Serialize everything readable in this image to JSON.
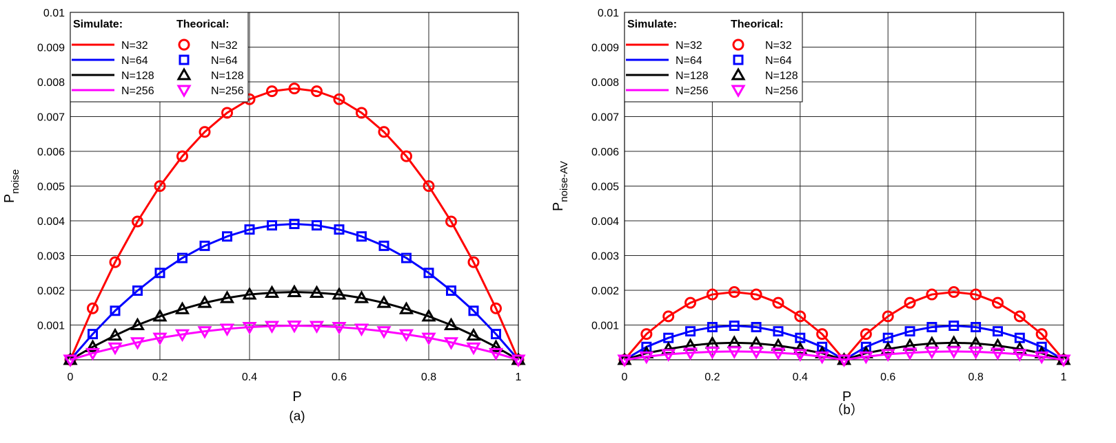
{
  "colors": {
    "N32": "#ff0000",
    "N64": "#0000ff",
    "N128": "#000000",
    "N256": "#ff00ff"
  },
  "chart_data": [
    {
      "type": "line",
      "panel": "a",
      "caption": "(a)",
      "xlabel": "P",
      "ylabel_main": "P",
      "ylabel_sub": "noise",
      "xlim": [
        0,
        1
      ],
      "ylim": [
        0,
        0.01
      ],
      "xticks": [
        "0",
        "0.2",
        "0.4",
        "0.6",
        "0.8",
        "1"
      ],
      "yticks": [
        "0.001",
        "0.002",
        "0.003",
        "0.004",
        "0.005",
        "0.006",
        "0.007",
        "0.008",
        "0.009",
        "0.01"
      ],
      "grid": true,
      "legend": {
        "position": "top-left",
        "simulate_title": "Simulate:",
        "theorical_title": "Theorical:"
      },
      "x": [
        0,
        0.05,
        0.1,
        0.15,
        0.2,
        0.25,
        0.3,
        0.35,
        0.4,
        0.45,
        0.5,
        0.55,
        0.6,
        0.65,
        0.7,
        0.75,
        0.8,
        0.85,
        0.9,
        0.95,
        1
      ],
      "series": [
        {
          "name": "N=32",
          "key": "N32",
          "marker": "circle",
          "values": [
            0,
            0.00148,
            0.00281,
            0.00398,
            0.005,
            0.00586,
            0.00656,
            0.00711,
            0.0075,
            0.00773,
            0.00781,
            0.00773,
            0.0075,
            0.00711,
            0.00656,
            0.00586,
            0.005,
            0.00398,
            0.00281,
            0.00148,
            0
          ]
        },
        {
          "name": "N=64",
          "key": "N64",
          "marker": "square",
          "values": [
            0,
            0.00074,
            0.00141,
            0.00199,
            0.0025,
            0.00293,
            0.00328,
            0.00355,
            0.00375,
            0.00387,
            0.00391,
            0.00387,
            0.00375,
            0.00355,
            0.00328,
            0.00293,
            0.0025,
            0.00199,
            0.00141,
            0.00074,
            0
          ]
        },
        {
          "name": "N=128",
          "key": "N128",
          "marker": "triangle-up",
          "values": [
            0,
            0.00037,
            0.0007,
            0.001,
            0.00125,
            0.00146,
            0.00164,
            0.00178,
            0.00188,
            0.00193,
            0.00195,
            0.00193,
            0.00188,
            0.00178,
            0.00164,
            0.00146,
            0.00125,
            0.001,
            0.0007,
            0.00037,
            0
          ]
        },
        {
          "name": "N=256",
          "key": "N256",
          "marker": "triangle-down",
          "values": [
            0,
            0.00019,
            0.00035,
            0.0005,
            0.00063,
            0.00073,
            0.00082,
            0.00089,
            0.00094,
            0.00097,
            0.00098,
            0.00097,
            0.00094,
            0.00089,
            0.00082,
            0.00073,
            0.00063,
            0.0005,
            0.00035,
            0.00019,
            0
          ]
        }
      ]
    },
    {
      "type": "line",
      "panel": "b",
      "caption": "（b）",
      "xlabel": "P",
      "ylabel_main": "P",
      "ylabel_sub": "noise-AV",
      "xlim": [
        0,
        1
      ],
      "ylim": [
        0,
        0.01
      ],
      "xticks": [
        "0",
        "0.2",
        "0.4",
        "0.6",
        "0.8",
        "1"
      ],
      "yticks": [
        "0.001",
        "0.002",
        "0.003",
        "0.004",
        "0.005",
        "0.006",
        "0.007",
        "0.008",
        "0.009",
        "0.01"
      ],
      "grid": true,
      "legend": {
        "position": "top-left",
        "simulate_title": "Simulate:",
        "theorical_title": "Theorical:"
      },
      "x": [
        0,
        0.05,
        0.1,
        0.15,
        0.2,
        0.25,
        0.3,
        0.35,
        0.4,
        0.45,
        0.5,
        0.55,
        0.6,
        0.65,
        0.7,
        0.75,
        0.8,
        0.85,
        0.9,
        0.95,
        1
      ],
      "series": [
        {
          "name": "N=32",
          "key": "N32",
          "marker": "circle",
          "values": [
            0,
            0.00074,
            0.00125,
            0.00164,
            0.00188,
            0.00195,
            0.00188,
            0.00164,
            0.00125,
            0.00074,
            0,
            0.00074,
            0.00125,
            0.00164,
            0.00188,
            0.00195,
            0.00188,
            0.00164,
            0.00125,
            0.00074,
            0
          ]
        },
        {
          "name": "N=64",
          "key": "N64",
          "marker": "square",
          "values": [
            0,
            0.00037,
            0.00063,
            0.00082,
            0.00094,
            0.00098,
            0.00094,
            0.00082,
            0.00063,
            0.00037,
            0,
            0.00037,
            0.00063,
            0.00082,
            0.00094,
            0.00098,
            0.00094,
            0.00082,
            0.00063,
            0.00037,
            0
          ]
        },
        {
          "name": "N=128",
          "key": "N128",
          "marker": "triangle-up",
          "values": [
            0,
            0.00019,
            0.00031,
            0.00041,
            0.00047,
            0.00049,
            0.00047,
            0.00041,
            0.00031,
            0.00019,
            0,
            0.00019,
            0.00031,
            0.00041,
            0.00047,
            0.00049,
            0.00047,
            0.00041,
            0.00031,
            0.00019,
            0
          ]
        },
        {
          "name": "N=256",
          "key": "N256",
          "marker": "triangle-down",
          "values": [
            0,
            9e-05,
            0.00016,
            0.0002,
            0.00023,
            0.00024,
            0.00023,
            0.0002,
            0.00016,
            9e-05,
            0,
            9e-05,
            0.00016,
            0.0002,
            0.00023,
            0.00024,
            0.00023,
            0.0002,
            0.00016,
            9e-05,
            0
          ]
        }
      ]
    }
  ]
}
